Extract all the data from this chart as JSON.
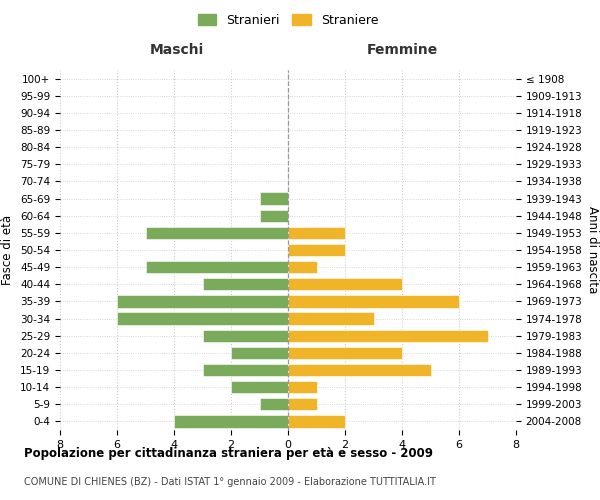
{
  "age_groups": [
    "100+",
    "95-99",
    "90-94",
    "85-89",
    "80-84",
    "75-79",
    "70-74",
    "65-69",
    "60-64",
    "55-59",
    "50-54",
    "45-49",
    "40-44",
    "35-39",
    "30-34",
    "25-29",
    "20-24",
    "15-19",
    "10-14",
    "5-9",
    "0-4"
  ],
  "birth_years": [
    "≤ 1908",
    "1909-1913",
    "1914-1918",
    "1919-1923",
    "1924-1928",
    "1929-1933",
    "1934-1938",
    "1939-1943",
    "1944-1948",
    "1949-1953",
    "1954-1958",
    "1959-1963",
    "1964-1968",
    "1969-1973",
    "1974-1978",
    "1979-1983",
    "1984-1988",
    "1989-1993",
    "1994-1998",
    "1999-2003",
    "2004-2008"
  ],
  "maschi": [
    0,
    0,
    0,
    0,
    0,
    0,
    0,
    1,
    1,
    5,
    0,
    5,
    3,
    6,
    6,
    3,
    2,
    3,
    2,
    1,
    4
  ],
  "femmine": [
    0,
    0,
    0,
    0,
    0,
    0,
    0,
    0,
    0,
    2,
    2,
    1,
    4,
    6,
    3,
    7,
    4,
    5,
    1,
    1,
    2
  ],
  "color_maschi": "#7aab5a",
  "color_femmine": "#f0b429",
  "title": "Popolazione per cittadinanza straniera per età e sesso - 2009",
  "subtitle": "COMUNE DI CHIENES (BZ) - Dati ISTAT 1° gennaio 2009 - Elaborazione TUTTITALIA.IT",
  "xlabel_left": "Maschi",
  "xlabel_right": "Femmine",
  "ylabel_left": "Fasce di età",
  "ylabel_right": "Anni di nascita",
  "legend_maschi": "Stranieri",
  "legend_femmine": "Straniere",
  "xlim": 8,
  "background_color": "#ffffff",
  "grid_color": "#cccccc"
}
